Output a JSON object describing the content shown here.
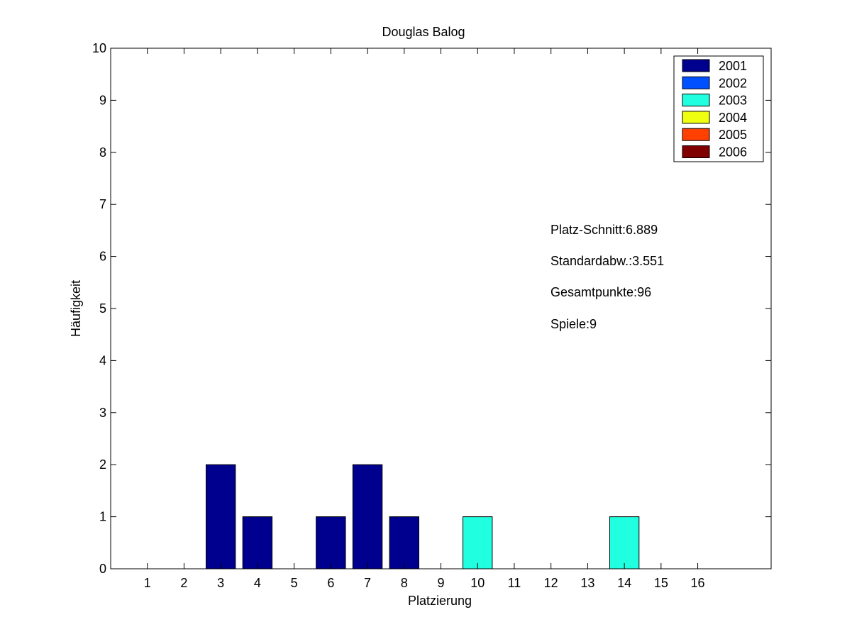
{
  "chart_data": {
    "type": "bar",
    "title": "Douglas Balog",
    "xlabel": "Platzierung",
    "ylabel": "Häufigkeit",
    "xlim": [
      0,
      18
    ],
    "ylim": [
      0,
      10
    ],
    "x_ticks": [
      1,
      2,
      3,
      4,
      5,
      6,
      7,
      8,
      9,
      10,
      11,
      12,
      13,
      14,
      15,
      16
    ],
    "y_ticks": [
      0,
      1,
      2,
      3,
      4,
      5,
      6,
      7,
      8,
      9,
      10
    ],
    "grid": false,
    "legend_position": "top-right",
    "series": [
      {
        "name": "2001",
        "color": "#00008F",
        "points": [
          {
            "x": 3,
            "y": 2
          },
          {
            "x": 4,
            "y": 1
          },
          {
            "x": 6,
            "y": 1
          },
          {
            "x": 7,
            "y": 2
          },
          {
            "x": 8,
            "y": 1
          }
        ]
      },
      {
        "name": "2002",
        "color": "#0050FF",
        "points": []
      },
      {
        "name": "2003",
        "color": "#20FFDF",
        "points": [
          {
            "x": 10,
            "y": 1
          },
          {
            "x": 14,
            "y": 1
          }
        ]
      },
      {
        "name": "2004",
        "color": "#EFFF10",
        "points": []
      },
      {
        "name": "2005",
        "color": "#FF4000",
        "points": []
      },
      {
        "name": "2006",
        "color": "#800000",
        "points": []
      }
    ],
    "annotations": [
      "Platz-Schnitt:6.889",
      "Standardabw.:3.551",
      "Gesamtpunkte:96",
      "Spiele:9"
    ]
  }
}
